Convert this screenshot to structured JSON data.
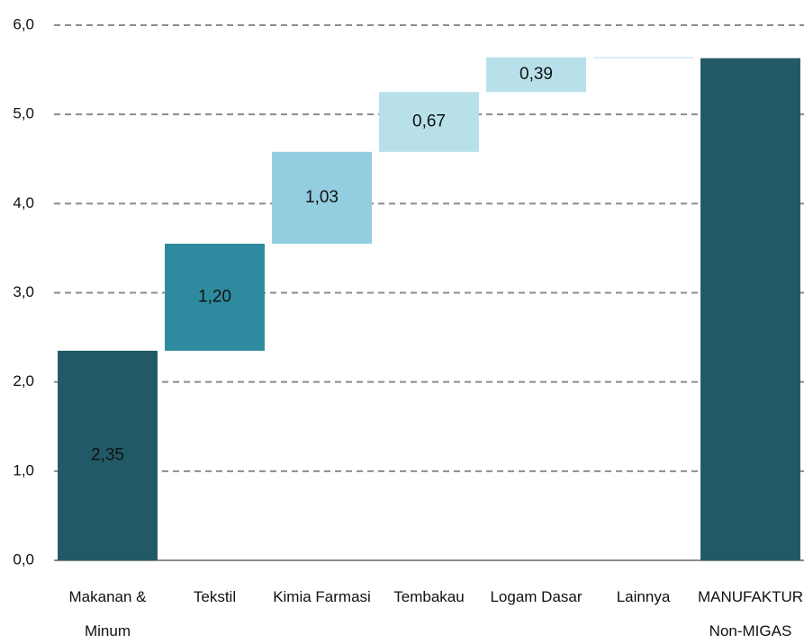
{
  "chart_data": {
    "type": "waterfall",
    "categories": [
      [
        "Makanan &",
        "Minum"
      ],
      [
        "Tekstil"
      ],
      [
        "Kimia Farmasi"
      ],
      [
        "Tembakau"
      ],
      [
        "Logam Dasar"
      ],
      [
        "Lainnya"
      ],
      [
        "MANUFAKTUR",
        "Non-MIGAS"
      ]
    ],
    "values": [
      2.35,
      1.2,
      1.03,
      0.67,
      0.39,
      -0.01,
      5.63
    ],
    "value_labels": [
      "2,35",
      "1,20",
      "1,03",
      "0,67",
      "0,39",
      null,
      null
    ],
    "is_total": [
      false,
      false,
      false,
      false,
      false,
      false,
      true
    ],
    "colors": [
      "#215a66",
      "#2e8a9e",
      "#92cde0",
      "#b7e0ea",
      "#b7e0ea",
      "#b7e0ea",
      "#215a66"
    ],
    "ylim": [
      0,
      6
    ],
    "yticks": [
      {
        "value": 0,
        "label": "0,0"
      },
      {
        "value": 1,
        "label": "1,0"
      },
      {
        "value": 2,
        "label": "2,0"
      },
      {
        "value": 3,
        "label": "3,0"
      },
      {
        "value": 4,
        "label": "4,0"
      },
      {
        "value": 5,
        "label": "5,0"
      },
      {
        "value": 6,
        "label": "6,0"
      }
    ],
    "grid": true
  }
}
